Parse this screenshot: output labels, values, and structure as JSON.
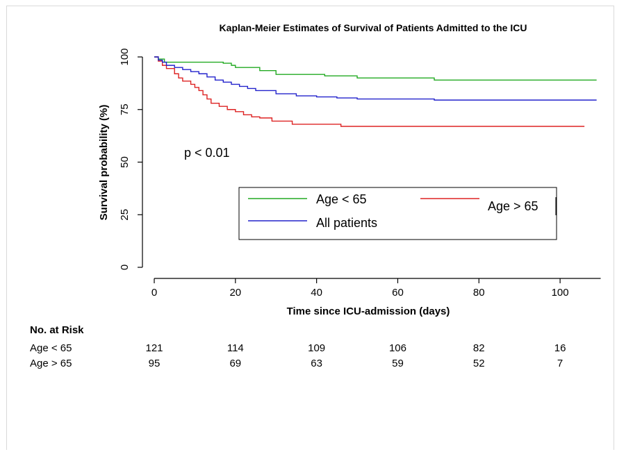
{
  "chart_data": {
    "type": "line",
    "title": "Kaplan-Meier Estimates of Survival of Patients Admitted to the ICU",
    "xlabel": "Time since ICU-admission (days)",
    "ylabel": "Survival probability (%)",
    "xlim": [
      0,
      110
    ],
    "ylim": [
      0,
      100
    ],
    "xticks": [
      "0",
      "20",
      "40",
      "60",
      "80",
      "100"
    ],
    "yticks": [
      "0",
      "25",
      "50",
      "75",
      "100"
    ],
    "annotation": "p < 0.01",
    "legend_position": "center-right",
    "series": [
      {
        "name": "Age < 65",
        "color": "#22aa22",
        "x": [
          0,
          1,
          2.5,
          15,
          17,
          19,
          20,
          22,
          26,
          30,
          42,
          50,
          69,
          109
        ],
        "y": [
          100,
          99,
          97.5,
          97.5,
          97,
          96,
          95,
          95,
          93.5,
          91.7,
          91,
          90,
          89,
          89
        ]
      },
      {
        "name": "Age > 65",
        "color": "#dd2222",
        "x": [
          0,
          1,
          2,
          3,
          5,
          6,
          7,
          9,
          10,
          11,
          12,
          13,
          14,
          16,
          18,
          20,
          22,
          24,
          26,
          29,
          34,
          46,
          106
        ],
        "y": [
          100,
          98,
          96,
          94.5,
          92,
          90,
          88.5,
          87,
          85.5,
          84,
          82,
          80,
          78,
          76.5,
          75,
          74,
          72.5,
          71.5,
          71,
          69.5,
          68,
          67,
          67
        ]
      },
      {
        "name": "All patients",
        "color": "#2222cc",
        "x": [
          0,
          1,
          2,
          3,
          5,
          7,
          9,
          11,
          13,
          15,
          17,
          19,
          21,
          23,
          25,
          30,
          35,
          40,
          45,
          50,
          55,
          69,
          109
        ],
        "y": [
          100,
          98.5,
          97.5,
          96,
          95,
          94,
          93,
          92,
          90.5,
          89,
          88,
          87,
          86,
          85,
          84,
          82.5,
          81.5,
          81,
          80.5,
          80,
          80,
          79.5,
          79.5
        ]
      }
    ]
  },
  "risk_table": {
    "header": "No. at Risk",
    "rows": [
      {
        "label": "Age < 65",
        "values": [
          "121",
          "114",
          "109",
          "106",
          "82",
          "16"
        ]
      },
      {
        "label": "Age > 65",
        "values": [
          "95",
          "69",
          "63",
          "59",
          "52",
          "7"
        ]
      }
    ]
  }
}
